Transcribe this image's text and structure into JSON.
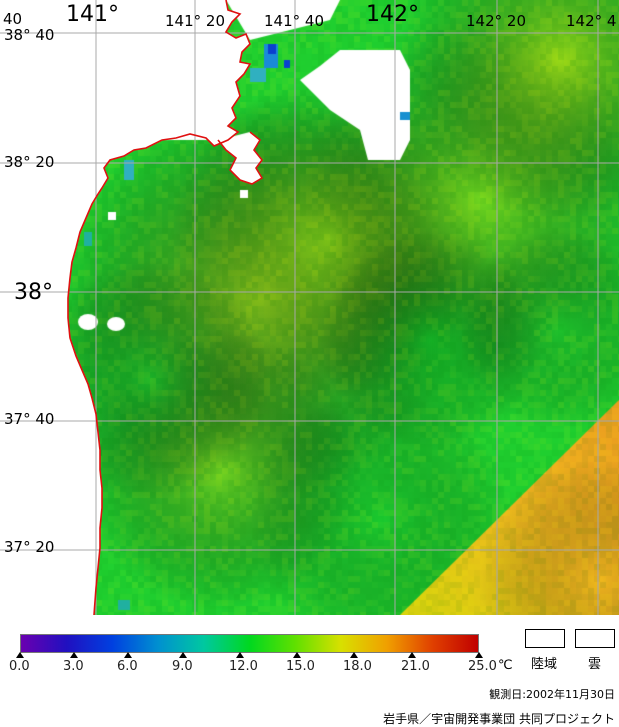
{
  "map": {
    "lon_labels": [
      {
        "text": "141°",
        "lon": 141.0
      },
      {
        "text": "141° 20",
        "lon": 141.333
      },
      {
        "text": "141° 40",
        "lon": 141.667
      },
      {
        "text": "142°",
        "lon": 142.0
      },
      {
        "text": "142° 20",
        "lon": 142.333
      },
      {
        "text": "142° 4",
        "lon": 142.667
      }
    ],
    "lat_labels": [
      {
        "text": "38° 40",
        "lat": 38.667
      },
      {
        "text": "38° 20",
        "lat": 38.333
      },
      {
        "text": "38°",
        "lat": 38.0
      },
      {
        "text": "37° 40",
        "lat": 37.667
      },
      {
        "text": "37° 20",
        "lat": 37.333
      }
    ],
    "corner_label": "40",
    "coastline_color": "#e01010",
    "grid_color": "#a8a8a8",
    "land_color": "#ffffff",
    "cloud_color": "#ffffff"
  },
  "colorbar": {
    "ticks": [
      "0.0",
      "3.0",
      "6.0",
      "9.0",
      "12.0",
      "15.0",
      "18.0",
      "21.0",
      "25.0"
    ],
    "unit": "℃",
    "min": 0,
    "max": 25,
    "colors": [
      "#6a00b0",
      "#2010c0",
      "#0040e0",
      "#0090d0",
      "#00c8a0",
      "#00d820",
      "#60e000",
      "#d8e000",
      "#f0a000",
      "#e04000",
      "#c00000"
    ]
  },
  "legend": {
    "land_label": "陸域",
    "cloud_label": "雲"
  },
  "observation_date": "観測日:2002年11月30日",
  "credit": "岩手県／宇宙開発事業団 共同プロジェクト"
}
